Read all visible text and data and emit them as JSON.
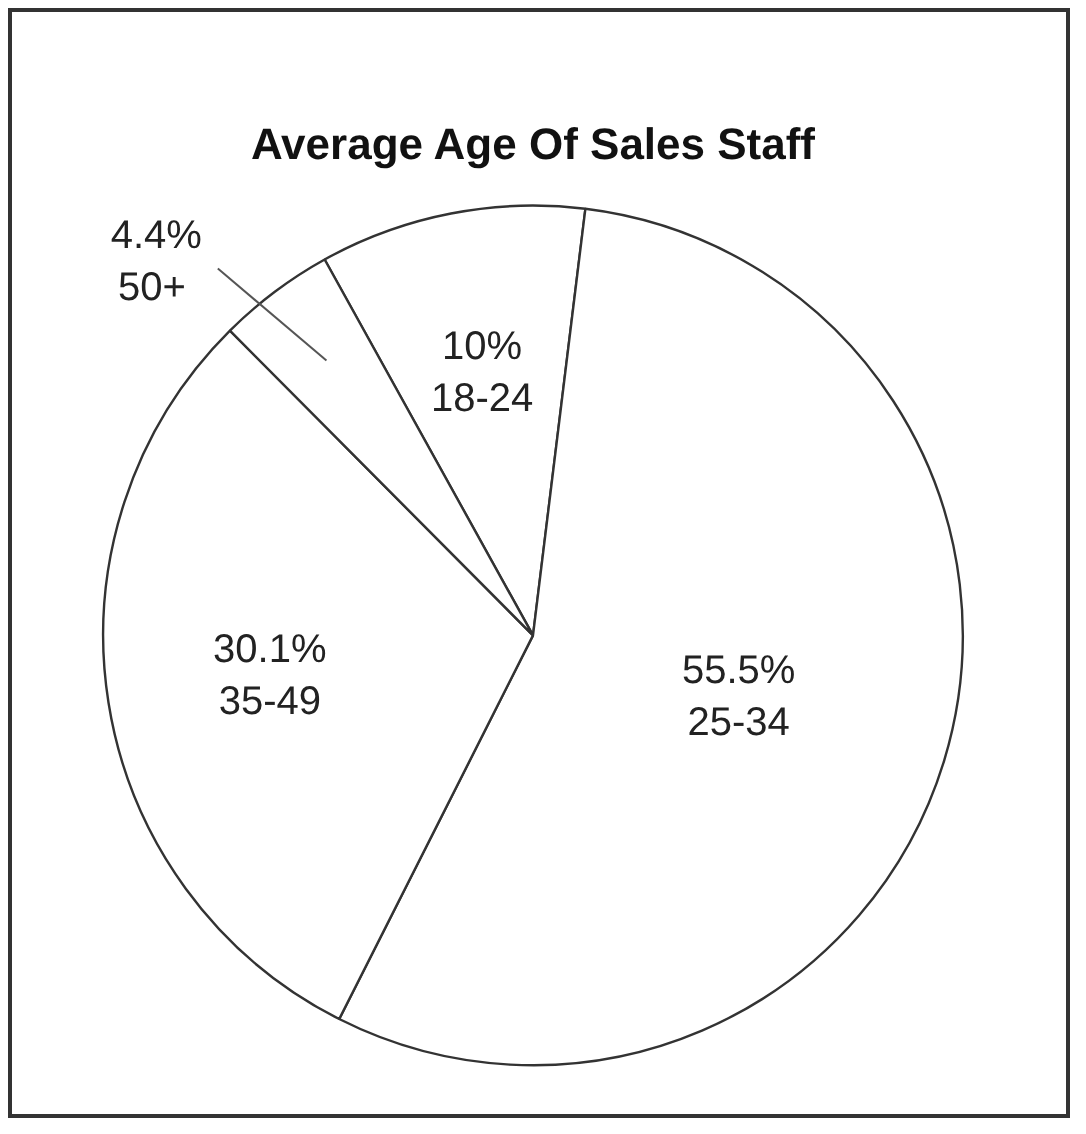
{
  "chart_data": {
    "type": "pie",
    "title": "Average Age Of Sales Staff",
    "categories": [
      "18-24",
      "25-34",
      "35-49",
      "50+"
    ],
    "values": [
      10,
      55.5,
      30.1,
      4.4
    ],
    "colors": [
      "#ffffff",
      "#ffffff",
      "#ffffff",
      "#ffffff"
    ],
    "value_labels": [
      "10%",
      "55.5%",
      "30.1%",
      "4.4%"
    ]
  }
}
